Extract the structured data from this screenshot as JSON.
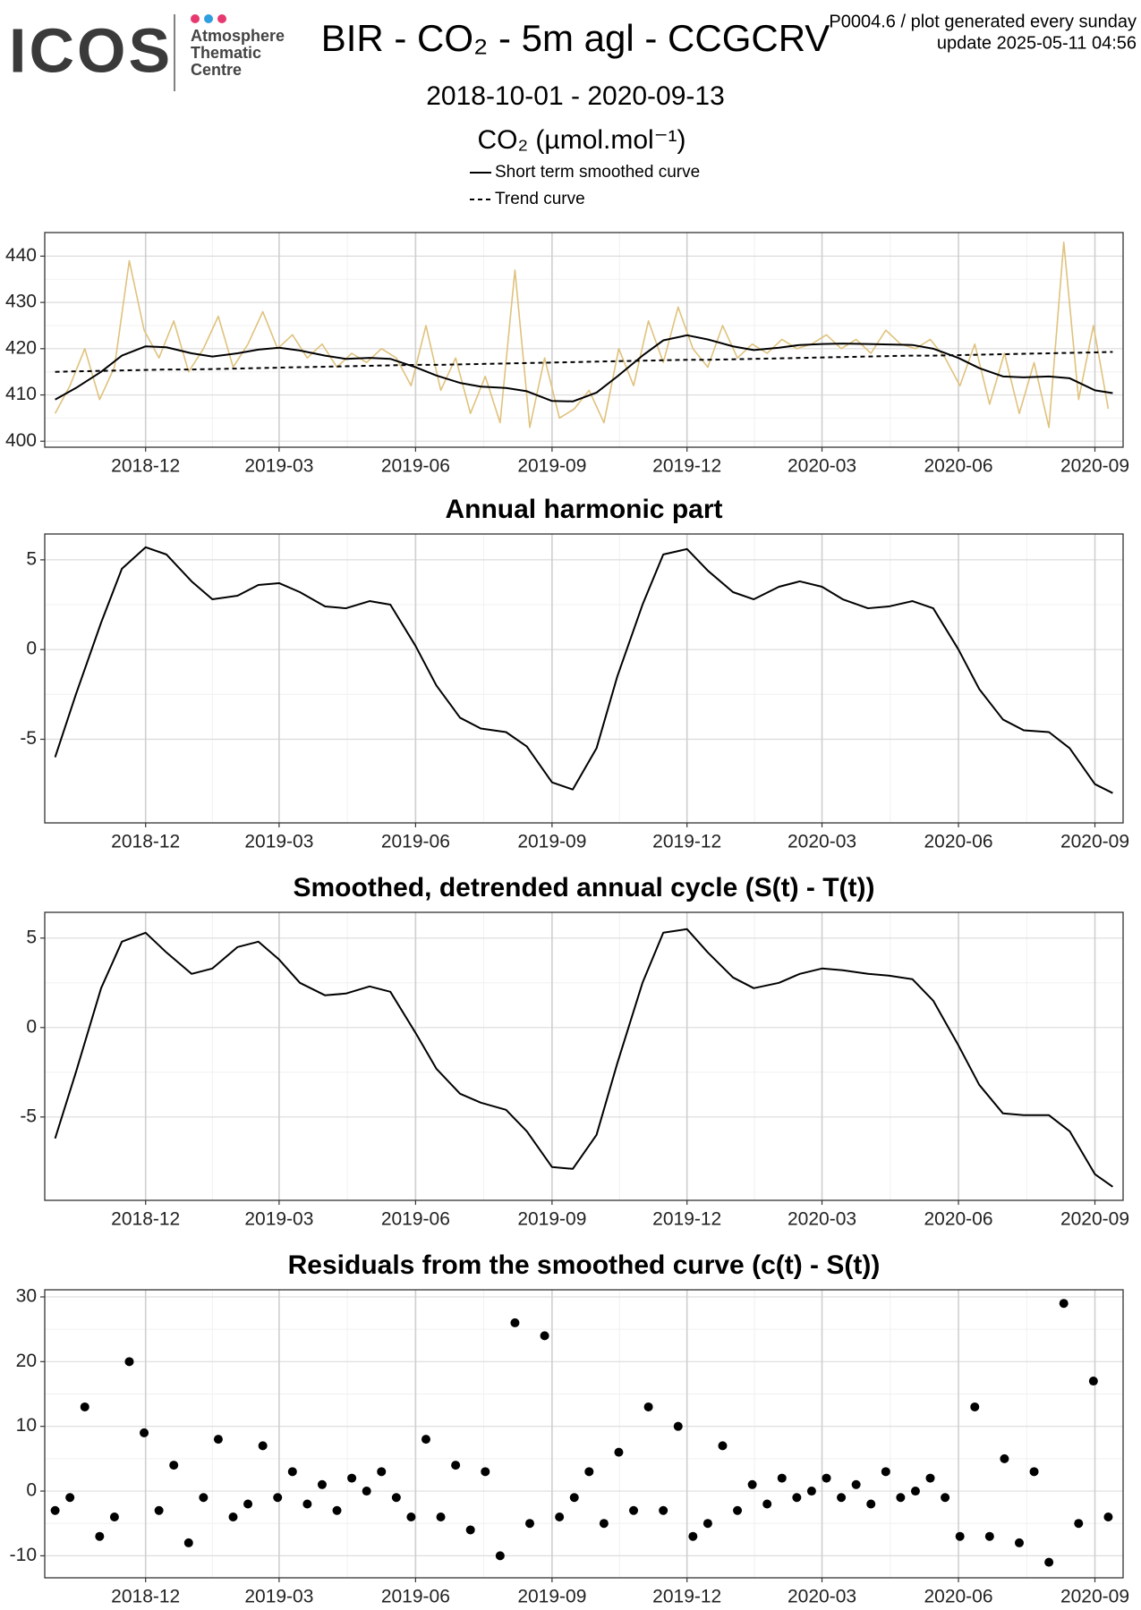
{
  "header": {
    "logo": "ICOS",
    "logo_lines": [
      "Atmosphere",
      "Thematic",
      "Centre"
    ],
    "title": "BIR - CO₂ - 5m agl - CCGCRV",
    "subtitle": "2018-10-01 - 2020-09-13",
    "notes": [
      "P0004.6 / plot generated every sunday",
      "update  2025-05-11 04:56"
    ]
  },
  "chart_data": [
    {
      "type": "line",
      "ylabel": "CO₂ (µmol.mol⁻¹)",
      "x": [
        "2018-10-01",
        "2018-10-15",
        "2018-11-01",
        "2018-11-15",
        "2018-12-01",
        "2018-12-15",
        "2019-01-01",
        "2019-01-15",
        "2019-02-01",
        "2019-02-15",
        "2019-03-01",
        "2019-03-15",
        "2019-04-01",
        "2019-04-15",
        "2019-05-01",
        "2019-05-15",
        "2019-06-01",
        "2019-06-15",
        "2019-07-01",
        "2019-07-15",
        "2019-08-01",
        "2019-08-15",
        "2019-09-01",
        "2019-09-15",
        "2019-10-01",
        "2019-10-15",
        "2019-11-01",
        "2019-11-15",
        "2019-12-01",
        "2019-12-15",
        "2020-01-01",
        "2020-01-15",
        "2020-02-01",
        "2020-02-15",
        "2020-03-01",
        "2020-03-15",
        "2020-04-01",
        "2020-04-15",
        "2020-05-01",
        "2020-05-15",
        "2020-06-01",
        "2020-06-15",
        "2020-07-01",
        "2020-07-15",
        "2020-08-01",
        "2020-08-15",
        "2020-09-01",
        "2020-09-13"
      ],
      "series": [
        {
          "color": "#dfc27d",
          "x": [
            "2018-10-01",
            "2018-10-11",
            "2018-10-21",
            "2018-10-31",
            "2018-11-10",
            "2018-11-20",
            "2018-11-30",
            "2018-12-10",
            "2018-12-20",
            "2018-12-30",
            "2019-01-09",
            "2019-01-19",
            "2019-01-29",
            "2019-02-08",
            "2019-02-18",
            "2019-02-28",
            "2019-03-10",
            "2019-03-20",
            "2019-03-30",
            "2019-04-09",
            "2019-04-19",
            "2019-04-29",
            "2019-05-09",
            "2019-05-19",
            "2019-05-29",
            "2019-06-08",
            "2019-06-18",
            "2019-06-28",
            "2019-07-08",
            "2019-07-18",
            "2019-07-28",
            "2019-08-07",
            "2019-08-17",
            "2019-08-27",
            "2019-09-06",
            "2019-09-16",
            "2019-09-26",
            "2019-10-06",
            "2019-10-16",
            "2019-10-26",
            "2019-11-05",
            "2019-11-15",
            "2019-11-25",
            "2019-12-05",
            "2019-12-15",
            "2019-12-25",
            "2020-01-04",
            "2020-01-14",
            "2020-01-24",
            "2020-02-03",
            "2020-02-13",
            "2020-02-23",
            "2020-03-04",
            "2020-03-14",
            "2020-03-24",
            "2020-04-03",
            "2020-04-13",
            "2020-04-23",
            "2020-05-03",
            "2020-05-13",
            "2020-05-23",
            "2020-06-02",
            "2020-06-12",
            "2020-06-22",
            "2020-07-02",
            "2020-07-12",
            "2020-07-22",
            "2020-08-01",
            "2020-08-11",
            "2020-08-21",
            "2020-08-31",
            "2020-09-10"
          ],
          "values": [
            406,
            412,
            420,
            409,
            416,
            439,
            424,
            418,
            426,
            415,
            420,
            427,
            416,
            421,
            428,
            420,
            423,
            418,
            421,
            416,
            419,
            417,
            420,
            418,
            412,
            425,
            411,
            418,
            406,
            414,
            404,
            437,
            403,
            418,
            405,
            407,
            411,
            404,
            420,
            412,
            426,
            417,
            429,
            420,
            416,
            425,
            418,
            421,
            419,
            422,
            420,
            421,
            423,
            420,
            422,
            419,
            424,
            421,
            420,
            422,
            418,
            412,
            421,
            408,
            419,
            406,
            417,
            403,
            443,
            409,
            425,
            407
          ]
        },
        {
          "name": "Short term smoothed curve",
          "color": "#000000",
          "linestyle": "solid",
          "values": [
            409,
            411.5,
            415,
            418.5,
            420.5,
            420.3,
            419,
            418.3,
            419,
            419.8,
            420.2,
            419.6,
            418.5,
            417.8,
            418,
            417.8,
            416,
            414.2,
            412.6,
            411.8,
            411.5,
            410.8,
            408.7,
            408.6,
            410.5,
            414,
            418.5,
            421.8,
            422.9,
            422,
            420.5,
            419.7,
            420.2,
            420.8,
            421,
            421.1,
            421,
            420.9,
            420.8,
            420,
            418,
            415.8,
            414,
            413.8,
            414,
            413.6,
            411,
            410.4
          ]
        },
        {
          "name": "Trend curve",
          "color": "#000000",
          "linestyle": "dashed",
          "values": [
            415.0,
            415.1,
            415.2,
            415.3,
            415.4,
            415.5,
            415.5,
            415.6,
            415.7,
            415.8,
            415.9,
            416.0,
            416.1,
            416.2,
            416.3,
            416.4,
            416.5,
            416.5,
            416.6,
            416.7,
            416.8,
            416.9,
            417.0,
            417.1,
            417.2,
            417.3,
            417.4,
            417.5,
            417.6,
            417.6,
            417.7,
            417.8,
            417.9,
            418.0,
            418.1,
            418.2,
            418.3,
            418.4,
            418.5,
            418.5,
            418.6,
            418.7,
            418.8,
            418.9,
            419.0,
            419.1,
            419.2,
            419.3
          ]
        }
      ],
      "xlim": [
        "2018-09-24",
        "2020-09-20"
      ],
      "xticks": [
        {
          "value": "2018-12-01",
          "label": "2018-12"
        },
        {
          "value": "2019-03-01",
          "label": "2019-03"
        },
        {
          "value": "2019-06-01",
          "label": "2019-06"
        },
        {
          "value": "2019-09-01",
          "label": "2019-09"
        },
        {
          "value": "2019-12-01",
          "label": "2019-12"
        },
        {
          "value": "2020-03-01",
          "label": "2020-03"
        },
        {
          "value": "2020-06-01",
          "label": "2020-06"
        },
        {
          "value": "2020-09-01",
          "label": "2020-09"
        }
      ],
      "ylim": [
        398.7,
        445.1
      ],
      "yticks": [
        400,
        410,
        420,
        430,
        440
      ],
      "grid": true
    },
    {
      "type": "line",
      "title": "Annual harmonic part",
      "x": [
        "2018-10-01",
        "2018-10-15",
        "2018-11-01",
        "2018-11-15",
        "2018-12-01",
        "2018-12-15",
        "2019-01-01",
        "2019-01-15",
        "2019-02-01",
        "2019-02-15",
        "2019-03-01",
        "2019-03-15",
        "2019-04-01",
        "2019-04-15",
        "2019-05-01",
        "2019-05-15",
        "2019-06-01",
        "2019-06-15",
        "2019-07-01",
        "2019-07-15",
        "2019-08-01",
        "2019-08-15",
        "2019-09-01",
        "2019-09-15",
        "2019-10-01",
        "2019-10-15",
        "2019-11-01",
        "2019-11-15",
        "2019-12-01",
        "2019-12-15",
        "2020-01-01",
        "2020-01-15",
        "2020-02-01",
        "2020-02-15",
        "2020-03-01",
        "2020-03-15",
        "2020-04-01",
        "2020-04-15",
        "2020-05-01",
        "2020-05-15",
        "2020-06-01",
        "2020-06-15",
        "2020-07-01",
        "2020-07-15",
        "2020-08-01",
        "2020-08-15",
        "2020-09-01",
        "2020-09-13"
      ],
      "series": [
        {
          "color": "#000000",
          "values": [
            -6.0,
            -2.5,
            1.5,
            4.5,
            5.7,
            5.3,
            3.8,
            2.8,
            3.0,
            3.6,
            3.7,
            3.2,
            2.4,
            2.3,
            2.7,
            2.5,
            0.2,
            -2.0,
            -3.8,
            -4.4,
            -4.6,
            -5.4,
            -7.4,
            -7.8,
            -5.5,
            -1.5,
            2.5,
            5.3,
            5.6,
            4.4,
            3.2,
            2.8,
            3.5,
            3.8,
            3.5,
            2.8,
            2.3,
            2.4,
            2.7,
            2.3,
            0.0,
            -2.2,
            -3.9,
            -4.5,
            -4.6,
            -5.5,
            -7.5,
            -8.0
          ]
        }
      ],
      "xlim": [
        "2018-09-24",
        "2020-09-20"
      ],
      "xticks": [
        {
          "value": "2018-12-01",
          "label": "2018-12"
        },
        {
          "value": "2019-03-01",
          "label": "2019-03"
        },
        {
          "value": "2019-06-01",
          "label": "2019-06"
        },
        {
          "value": "2019-09-01",
          "label": "2019-09"
        },
        {
          "value": "2019-12-01",
          "label": "2019-12"
        },
        {
          "value": "2020-03-01",
          "label": "2020-03"
        },
        {
          "value": "2020-06-01",
          "label": "2020-06"
        },
        {
          "value": "2020-09-01",
          "label": "2020-09"
        }
      ],
      "ylim": [
        -9.66,
        6.44
      ],
      "yticks": [
        -5,
        0,
        5
      ],
      "grid": true
    },
    {
      "type": "line",
      "title": "Smoothed, detrended annual cycle (S(t) - T(t))",
      "x": [
        "2018-10-01",
        "2018-10-15",
        "2018-11-01",
        "2018-11-15",
        "2018-12-01",
        "2018-12-15",
        "2019-01-01",
        "2019-01-15",
        "2019-02-01",
        "2019-02-15",
        "2019-03-01",
        "2019-03-15",
        "2019-04-01",
        "2019-04-15",
        "2019-05-01",
        "2019-05-15",
        "2019-06-01",
        "2019-06-15",
        "2019-07-01",
        "2019-07-15",
        "2019-08-01",
        "2019-08-15",
        "2019-09-01",
        "2019-09-15",
        "2019-10-01",
        "2019-10-15",
        "2019-11-01",
        "2019-11-15",
        "2019-12-01",
        "2019-12-15",
        "2020-01-01",
        "2020-01-15",
        "2020-02-01",
        "2020-02-15",
        "2020-03-01",
        "2020-03-15",
        "2020-04-01",
        "2020-04-15",
        "2020-05-01",
        "2020-05-15",
        "2020-06-01",
        "2020-06-15",
        "2020-07-01",
        "2020-07-15",
        "2020-08-01",
        "2020-08-15",
        "2020-09-01",
        "2020-09-13"
      ],
      "series": [
        {
          "color": "#000000",
          "values": [
            -6.2,
            -2.5,
            2.2,
            4.8,
            5.3,
            4.2,
            3.0,
            3.3,
            4.5,
            4.8,
            3.8,
            2.5,
            1.8,
            1.9,
            2.3,
            2.0,
            -0.3,
            -2.3,
            -3.7,
            -4.2,
            -4.6,
            -5.8,
            -7.8,
            -7.9,
            -6.0,
            -2.0,
            2.5,
            5.3,
            5.5,
            4.2,
            2.8,
            2.2,
            2.5,
            3.0,
            3.3,
            3.2,
            3.0,
            2.9,
            2.7,
            1.5,
            -1.0,
            -3.2,
            -4.8,
            -4.9,
            -4.9,
            -5.8,
            -8.2,
            -8.9
          ]
        }
      ],
      "xlim": [
        "2018-09-24",
        "2020-09-20"
      ],
      "xticks": [
        {
          "value": "2018-12-01",
          "label": "2018-12"
        },
        {
          "value": "2019-03-01",
          "label": "2019-03"
        },
        {
          "value": "2019-06-01",
          "label": "2019-06"
        },
        {
          "value": "2019-09-01",
          "label": "2019-09"
        },
        {
          "value": "2019-12-01",
          "label": "2019-12"
        },
        {
          "value": "2020-03-01",
          "label": "2020-03"
        },
        {
          "value": "2020-06-01",
          "label": "2020-06"
        },
        {
          "value": "2020-09-01",
          "label": "2020-09"
        }
      ],
      "ylim": [
        -9.66,
        6.44
      ],
      "yticks": [
        -5,
        0,
        5
      ],
      "grid": true
    },
    {
      "type": "scatter",
      "title": "Residuals from the smoothed curve (c(t) - S(t))",
      "x": [
        "2018-10-01",
        "2018-10-11",
        "2018-10-21",
        "2018-10-31",
        "2018-11-10",
        "2018-11-20",
        "2018-11-30",
        "2018-12-10",
        "2018-12-20",
        "2018-12-30",
        "2019-01-09",
        "2019-01-19",
        "2019-01-29",
        "2019-02-08",
        "2019-02-18",
        "2019-02-28",
        "2019-03-10",
        "2019-03-20",
        "2019-03-30",
        "2019-04-09",
        "2019-04-19",
        "2019-04-29",
        "2019-05-09",
        "2019-05-19",
        "2019-05-29",
        "2019-06-08",
        "2019-06-18",
        "2019-06-28",
        "2019-07-08",
        "2019-07-18",
        "2019-07-28",
        "2019-08-07",
        "2019-08-17",
        "2019-08-27",
        "2019-09-06",
        "2019-09-16",
        "2019-09-26",
        "2019-10-06",
        "2019-10-16",
        "2019-10-26",
        "2019-11-05",
        "2019-11-15",
        "2019-11-25",
        "2019-12-05",
        "2019-12-15",
        "2019-12-25",
        "2020-01-04",
        "2020-01-14",
        "2020-01-24",
        "2020-02-03",
        "2020-02-13",
        "2020-02-23",
        "2020-03-04",
        "2020-03-14",
        "2020-03-24",
        "2020-04-03",
        "2020-04-13",
        "2020-04-23",
        "2020-05-03",
        "2020-05-13",
        "2020-05-23",
        "2020-06-02",
        "2020-06-12",
        "2020-06-22",
        "2020-07-02",
        "2020-07-12",
        "2020-07-22",
        "2020-08-01",
        "2020-08-11",
        "2020-08-21",
        "2020-08-31",
        "2020-09-10"
      ],
      "series": [
        {
          "color": "#000000",
          "values": [
            -3,
            -1,
            13,
            -7,
            -4,
            20,
            9,
            -3,
            4,
            -8,
            -1,
            8,
            -4,
            -2,
            7,
            -1,
            3,
            -2,
            1,
            -3,
            2,
            0,
            3,
            -1,
            -4,
            8,
            -4,
            4,
            -6,
            3,
            -10,
            26,
            -5,
            24,
            -4,
            -1,
            3,
            -5,
            6,
            -3,
            13,
            -3,
            10,
            -7,
            -5,
            7,
            -3,
            1,
            -2,
            2,
            -1,
            0,
            2,
            -1,
            1,
            -2,
            3,
            -1,
            0,
            2,
            -1,
            -7,
            13,
            -7,
            5,
            -8,
            3,
            -11,
            29,
            -5,
            17,
            -4
          ]
        }
      ],
      "xlim": [
        "2018-09-24",
        "2020-09-20"
      ],
      "xticks": [
        {
          "value": "2018-12-01",
          "label": "2018-12"
        },
        {
          "value": "2019-03-01",
          "label": "2019-03"
        },
        {
          "value": "2019-06-01",
          "label": "2019-06"
        },
        {
          "value": "2019-09-01",
          "label": "2019-09"
        },
        {
          "value": "2019-12-01",
          "label": "2019-12"
        },
        {
          "value": "2020-03-01",
          "label": "2020-03"
        },
        {
          "value": "2020-06-01",
          "label": "2020-06"
        },
        {
          "value": "2020-09-01",
          "label": "2020-09"
        }
      ],
      "ylim": [
        -13.4,
        31.1
      ],
      "yticks": [
        -10,
        0,
        10,
        20,
        30
      ],
      "grid": true
    }
  ]
}
